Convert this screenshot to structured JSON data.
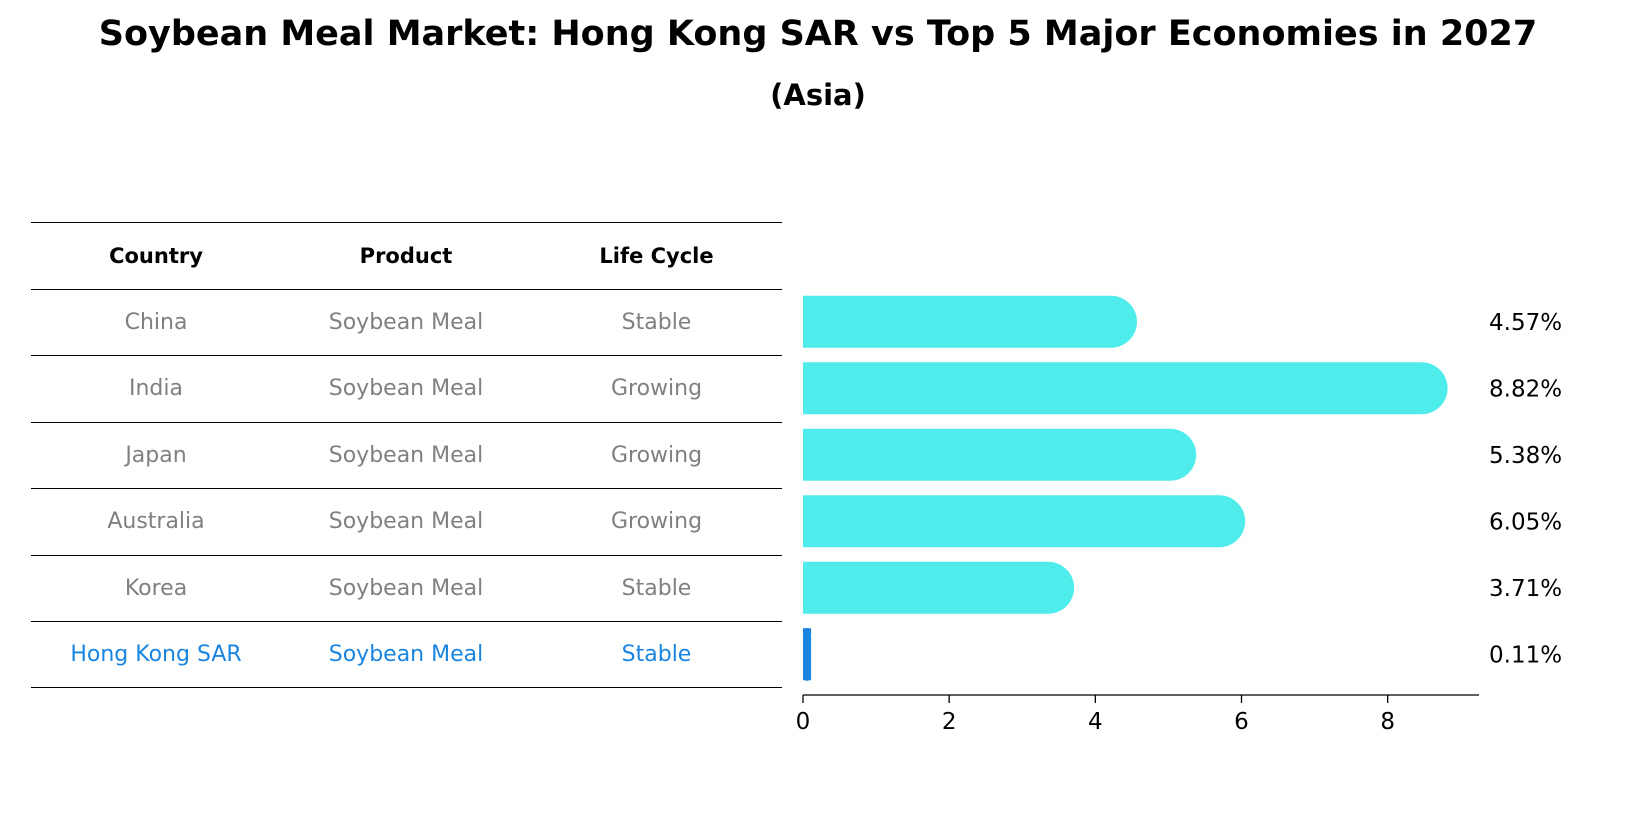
{
  "title": "Soybean Meal Market: Hong Kong SAR vs Top 5 Major Economies in 2027",
  "subtitle": "(Asia)",
  "table": {
    "headers": [
      "Country",
      "Product",
      "Life Cycle"
    ],
    "rows": [
      [
        "China",
        "Soybean Meal",
        "Stable"
      ],
      [
        "India",
        "Soybean Meal",
        "Growing"
      ],
      [
        "Japan",
        "Soybean Meal",
        "Growing"
      ],
      [
        "Australia",
        "Soybean Meal",
        "Growing"
      ],
      [
        "Korea",
        "Soybean Meal",
        "Stable"
      ],
      [
        "Hong Kong SAR",
        "Soybean Meal",
        "Stable"
      ]
    ]
  },
  "colors": {
    "bar": "#4eeceb",
    "highlight": "#1a85e0",
    "muted_text": "#808080"
  },
  "chart_data": {
    "type": "bar",
    "orientation": "horizontal",
    "categories": [
      "China",
      "India",
      "Japan",
      "Australia",
      "Korea",
      "Hong Kong SAR"
    ],
    "values": [
      4.57,
      8.82,
      5.38,
      6.05,
      3.71,
      0.11
    ],
    "value_labels": [
      "4.57%",
      "8.82%",
      "5.38%",
      "6.05%",
      "3.71%",
      "0.11%"
    ],
    "xlim": [
      0,
      9.25
    ],
    "xticks": [
      0,
      2,
      4,
      6,
      8
    ],
    "highlight_category": "Hong Kong SAR"
  }
}
